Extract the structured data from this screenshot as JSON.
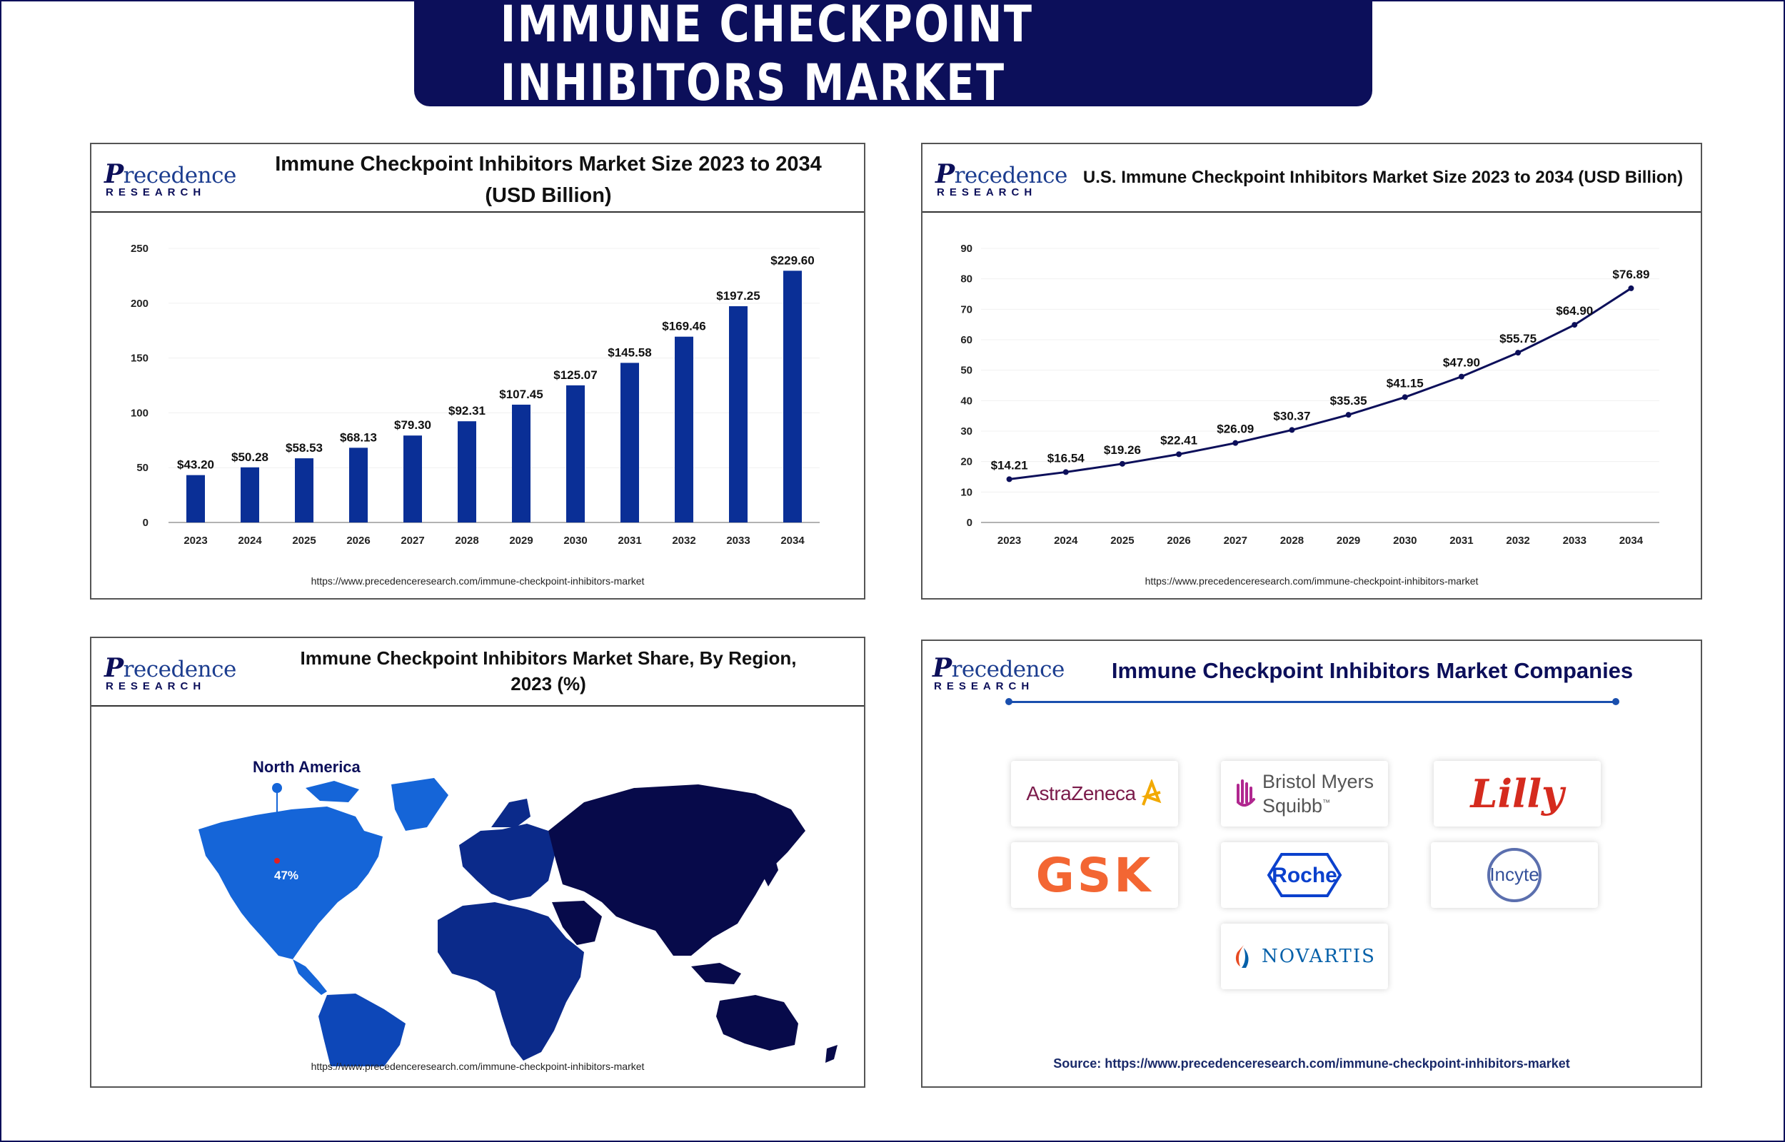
{
  "page_title": "IMMUNE CHECKPOINT INHIBITORS MARKET",
  "logo": {
    "main": "recedence",
    "initial": "P",
    "sub": "RESEARCH"
  },
  "chart_data": [
    {
      "type": "bar",
      "title_line1": "Immune Checkpoint Inhibitors Market Size 2023 to 2034",
      "title_line2": "(USD Billion)",
      "categories": [
        "2023",
        "2024",
        "2025",
        "2026",
        "2027",
        "2028",
        "2029",
        "2030",
        "2031",
        "2032",
        "2033",
        "2034"
      ],
      "values": [
        43.2,
        50.28,
        58.53,
        68.13,
        79.3,
        92.31,
        107.45,
        125.07,
        145.58,
        169.46,
        197.25,
        229.6
      ],
      "labels": [
        "$43.20",
        "$50.28",
        "$58.53",
        "$68.13",
        "$79.30",
        "$92.31",
        "$107.45",
        "$125.07",
        "$145.58",
        "$169.46",
        "$197.25",
        "$229.60"
      ],
      "yticks": [
        0,
        50,
        100,
        150,
        200,
        250
      ],
      "ylim": [
        0,
        250
      ],
      "color": "#0a2f96",
      "source": "https://www.precedenceresearch.com/immune-checkpoint-inhibitors-market"
    },
    {
      "type": "line",
      "title": "U.S. Immune Checkpoint Inhibitors Market Size 2023 to 2034 (USD Billion)",
      "categories": [
        "2023",
        "2024",
        "2025",
        "2026",
        "2027",
        "2028",
        "2029",
        "2030",
        "2031",
        "2032",
        "2033",
        "2034"
      ],
      "values": [
        14.21,
        16.54,
        19.26,
        22.41,
        26.09,
        30.37,
        35.35,
        41.15,
        47.9,
        55.75,
        64.9,
        76.89
      ],
      "labels": [
        "$14.21",
        "$16.54",
        "$19.26",
        "$22.41",
        "$26.09",
        "$30.37",
        "$35.35",
        "$41.15",
        "$47.90",
        "$55.75",
        "$64.90",
        "$76.89"
      ],
      "yticks": [
        0,
        10,
        20,
        30,
        40,
        50,
        60,
        70,
        80,
        90
      ],
      "ylim": [
        0,
        90
      ],
      "color": "#0c0f5a",
      "source": "https://www.precedenceresearch.com/immune-checkpoint-inhibitors-market"
    },
    {
      "type": "map",
      "title_line1": "Immune Checkpoint Inhibitors Market Share, By Region,",
      "title_line2": "2023 (%)",
      "highlight_region": "North America",
      "highlight_value": "47%",
      "source": "https://www.precedenceresearch.com/immune-checkpoint-inhibitors-market"
    }
  ],
  "companies": {
    "title": "Immune Checkpoint Inhibitors Market Companies",
    "names": {
      "astrazeneca": "AstraZeneca",
      "bms_line1": "Bristol Myers",
      "bms_line2": "Squibb",
      "bms_tm": "™",
      "lilly": "Lilly",
      "gsk": "GSK",
      "roche": "Roche",
      "incyte": "Incyte",
      "novartis": "NOVARTIS"
    },
    "source": "Source: https://www.precedenceresearch.com/immune-checkpoint-inhibitors-market"
  },
  "colors": {
    "navy": "#0c0f5a",
    "bar_blue": "#0a2f96",
    "na_blue": "#1565d8",
    "sa_blue": "#0d47b8",
    "eu_blue": "#0b2a8a",
    "asia_navy": "#070a4a"
  }
}
